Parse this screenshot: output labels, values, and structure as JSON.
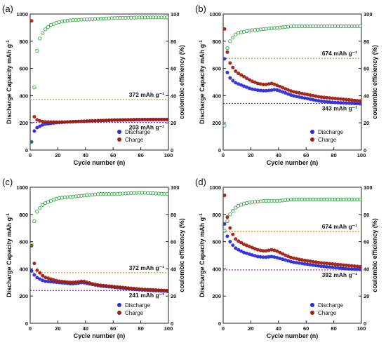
{
  "chart_data": [
    {
      "panel": "(a)",
      "type": "scatter",
      "xlabel": "Cycle number (n)",
      "ylabel": "Discharge Capacity  mAh g",
      "y2label": "coulombic efficiency (%)",
      "xlim": [
        0,
        100
      ],
      "ylim": [
        0,
        1000
      ],
      "y2lim": [
        0,
        100
      ],
      "xticks": [
        "0",
        "20",
        "40",
        "60",
        "80",
        "100"
      ],
      "yticks": [
        "0",
        "200",
        "400",
        "600",
        "800",
        "1000"
      ],
      "y2ticks": [
        "0",
        "20",
        "40",
        "60",
        "80",
        "100"
      ],
      "legend": [
        "Discharge",
        "Charge"
      ],
      "legend_position": "bottom-right",
      "reference_lines": [
        {
          "value": 372,
          "label": "372 mAh g⁻¹",
          "color": "#e08a1c"
        },
        {
          "value": 203,
          "label": "203 mAh g⁻¹",
          "color": "#7a28a8"
        }
      ],
      "series": [
        {
          "name": "Discharge",
          "color": "#2b2bd8",
          "points": [
            [
              1,
              60
            ],
            [
              2,
              105
            ],
            [
              3,
              140
            ],
            [
              5,
              165
            ],
            [
              8,
              180
            ],
            [
              10,
              190
            ],
            [
              20,
              202
            ],
            [
              30,
              208
            ],
            [
              40,
              212
            ],
            [
              50,
              216
            ],
            [
              60,
              220
            ],
            [
              70,
              222
            ],
            [
              80,
              224
            ],
            [
              90,
              225
            ],
            [
              100,
              225
            ]
          ]
        },
        {
          "name": "Charge",
          "color": "#a02010",
          "points": [
            [
              1,
              950
            ],
            [
              2,
              300
            ],
            [
              3,
              245
            ],
            [
              5,
              222
            ],
            [
              8,
              212
            ],
            [
              10,
              208
            ],
            [
              20,
              205
            ],
            [
              30,
              208
            ],
            [
              40,
              212
            ],
            [
              50,
              216
            ],
            [
              60,
              220
            ],
            [
              70,
              222
            ],
            [
              80,
              224
            ],
            [
              90,
              224
            ],
            [
              100,
              224
            ]
          ]
        },
        {
          "name": "Coulombic efficiency",
          "color": "#3aa64a",
          "axis": "right",
          "points": [
            [
              1,
              6
            ],
            [
              2,
              27
            ],
            [
              3,
              46
            ],
            [
              4,
              63
            ],
            [
              5,
              73
            ],
            [
              7,
              82
            ],
            [
              10,
              88
            ],
            [
              15,
              92
            ],
            [
              20,
              94
            ],
            [
              30,
              95.5
            ],
            [
              40,
              96
            ],
            [
              60,
              97
            ],
            [
              80,
              97.5
            ],
            [
              100,
              97.5
            ]
          ]
        }
      ]
    },
    {
      "panel": "(b)",
      "type": "scatter",
      "xlabel": "Cycle number (n)",
      "ylabel": "Discharge Capacity  mAh g",
      "y2label": "coulombic efficiency (%)",
      "xlim": [
        0,
        100
      ],
      "ylim": [
        0,
        1000
      ],
      "y2lim": [
        0,
        100
      ],
      "xticks": [
        "0",
        "20",
        "40",
        "60",
        "80",
        "100"
      ],
      "yticks": [
        "0",
        "200",
        "400",
        "600",
        "800",
        "1000"
      ],
      "y2ticks": [
        "0",
        "20",
        "40",
        "60",
        "80",
        "100"
      ],
      "legend": [
        "Discharge",
        "Charge"
      ],
      "legend_position": "bottom-right",
      "reference_lines": [
        {
          "value": 674,
          "label": "674 mAh g⁻¹",
          "color": "#e08a1c"
        },
        {
          "value": 343,
          "label": "343 mAh g⁻¹",
          "color": "#7a28a8"
        }
      ],
      "series": [
        {
          "name": "Discharge",
          "color": "#2b2bd8",
          "points": [
            [
              1,
              670
            ],
            [
              2,
              600
            ],
            [
              3,
              570
            ],
            [
              5,
              530
            ],
            [
              8,
              500
            ],
            [
              10,
              490
            ],
            [
              15,
              470
            ],
            [
              20,
              450
            ],
            [
              25,
              440
            ],
            [
              30,
              435
            ],
            [
              35,
              440
            ],
            [
              38,
              445
            ],
            [
              45,
              420
            ],
            [
              50,
              400
            ],
            [
              60,
              380
            ],
            [
              70,
              360
            ],
            [
              80,
              350
            ],
            [
              90,
              345
            ],
            [
              100,
              340
            ]
          ]
        },
        {
          "name": "Charge",
          "color": "#a02010",
          "points": [
            [
              1,
              890
            ],
            [
              2,
              780
            ],
            [
              3,
              720
            ],
            [
              5,
              640
            ],
            [
              8,
              590
            ],
            [
              10,
              570
            ],
            [
              15,
              540
            ],
            [
              20,
              510
            ],
            [
              25,
              490
            ],
            [
              30,
              480
            ],
            [
              35,
              490
            ],
            [
              38,
              480
            ],
            [
              45,
              450
            ],
            [
              50,
              430
            ],
            [
              60,
              410
            ],
            [
              70,
              390
            ],
            [
              80,
              380
            ],
            [
              90,
              370
            ],
            [
              100,
              360
            ]
          ]
        },
        {
          "name": "Coulombic efficiency",
          "color": "#3aa64a",
          "axis": "right",
          "points": [
            [
              1,
              18
            ],
            [
              2,
              70
            ],
            [
              3,
              75
            ],
            [
              5,
              80
            ],
            [
              8,
              84
            ],
            [
              10,
              86
            ],
            [
              20,
              88
            ],
            [
              30,
              89
            ],
            [
              40,
              90
            ],
            [
              50,
              91
            ],
            [
              60,
              91
            ],
            [
              70,
              91
            ],
            [
              80,
              91
            ],
            [
              90,
              91
            ],
            [
              100,
              91
            ]
          ]
        }
      ]
    },
    {
      "panel": "(c)",
      "type": "scatter",
      "xlabel": "Cycle number (n)",
      "ylabel": "Discharge Capacity  mAh g",
      "y2label": "coulombic efficiency (%)",
      "xlim": [
        0,
        100
      ],
      "ylim": [
        0,
        1000
      ],
      "y2lim": [
        0,
        100
      ],
      "xticks": [
        "0",
        "20",
        "40",
        "60",
        "80",
        "100"
      ],
      "yticks": [
        "0",
        "200",
        "400",
        "600",
        "800",
        "1000"
      ],
      "y2ticks": [
        "0",
        "20",
        "40",
        "60",
        "80",
        "100"
      ],
      "legend": [
        "Discharge",
        "Charge"
      ],
      "legend_position": "bottom-right",
      "reference_lines": [
        {
          "value": 372,
          "label": "372 mAh g⁻¹",
          "color": "#e08a1c"
        },
        {
          "value": 241,
          "label": "241 mAh g⁻¹",
          "color": "#7a28a8"
        }
      ],
      "series": [
        {
          "name": "Discharge",
          "color": "#2b2bd8",
          "points": [
            [
              1,
              385
            ],
            [
              2,
              370
            ],
            [
              3,
              355
            ],
            [
              5,
              335
            ],
            [
              8,
              320
            ],
            [
              10,
              310
            ],
            [
              20,
              300
            ],
            [
              30,
              290
            ],
            [
              35,
              295
            ],
            [
              38,
              300
            ],
            [
              45,
              285
            ],
            [
              50,
              275
            ],
            [
              60,
              265
            ],
            [
              70,
              255
            ],
            [
              80,
              245
            ],
            [
              90,
              240
            ],
            [
              100,
              235
            ]
          ]
        },
        {
          "name": "Charge",
          "color": "#a02010",
          "points": [
            [
              1,
              570
            ],
            [
              2,
              480
            ],
            [
              3,
              440
            ],
            [
              5,
              390
            ],
            [
              8,
              360
            ],
            [
              10,
              340
            ],
            [
              20,
              310
            ],
            [
              30,
              300
            ],
            [
              35,
              305
            ],
            [
              38,
              310
            ],
            [
              45,
              290
            ],
            [
              50,
              280
            ],
            [
              60,
              270
            ],
            [
              70,
              260
            ],
            [
              80,
              250
            ],
            [
              90,
              245
            ],
            [
              100,
              240
            ]
          ]
        },
        {
          "name": "Coulombic efficiency",
          "color": "#3aa64a",
          "axis": "right",
          "points": [
            [
              1,
              58
            ],
            [
              2,
              67
            ],
            [
              3,
              75
            ],
            [
              5,
              82
            ],
            [
              8,
              86
            ],
            [
              10,
              88
            ],
            [
              15,
              90
            ],
            [
              20,
              92
            ],
            [
              30,
              93
            ],
            [
              40,
              94
            ],
            [
              50,
              95
            ],
            [
              60,
              95
            ],
            [
              80,
              96
            ],
            [
              100,
              95
            ]
          ]
        }
      ]
    },
    {
      "panel": "(d)",
      "type": "scatter",
      "xlabel": "Cycle number (n)",
      "ylabel": "Discharge Capacity  mAh g",
      "y2label": "coulombic efficiency (%)",
      "xlim": [
        0,
        100
      ],
      "ylim": [
        0,
        1000
      ],
      "y2lim": [
        0,
        100
      ],
      "xticks": [
        "0",
        "20",
        "40",
        "60",
        "80",
        "100"
      ],
      "yticks": [
        "0",
        "200",
        "400",
        "600",
        "800",
        "1000"
      ],
      "y2ticks": [
        "0",
        "20",
        "40",
        "60",
        "80",
        "100"
      ],
      "legend": [
        "Discharge",
        "Charge"
      ],
      "legend_position": "bottom-right",
      "reference_lines": [
        {
          "value": 674,
          "label": "674 mAh g⁻¹",
          "color": "#e08a1c"
        },
        {
          "value": 392,
          "label": "392 mAh g⁻¹",
          "color": "#7a28a8"
        }
      ],
      "series": [
        {
          "name": "Discharge",
          "color": "#2b2bd8",
          "points": [
            [
              1,
              730
            ],
            [
              2,
              680
            ],
            [
              3,
              640
            ],
            [
              5,
              600
            ],
            [
              8,
              560
            ],
            [
              10,
              545
            ],
            [
              15,
              520
            ],
            [
              20,
              505
            ],
            [
              25,
              490
            ],
            [
              30,
              485
            ],
            [
              35,
              490
            ],
            [
              38,
              485
            ],
            [
              45,
              465
            ],
            [
              50,
              450
            ],
            [
              60,
              435
            ],
            [
              70,
              420
            ],
            [
              80,
              410
            ],
            [
              90,
              400
            ],
            [
              100,
              395
            ]
          ]
        },
        {
          "name": "Charge",
          "color": "#a02010",
          "points": [
            [
              1,
              940
            ],
            [
              2,
              850
            ],
            [
              3,
              780
            ],
            [
              5,
              700
            ],
            [
              8,
              630
            ],
            [
              10,
              610
            ],
            [
              15,
              580
            ],
            [
              20,
              560
            ],
            [
              25,
              540
            ],
            [
              30,
              530
            ],
            [
              35,
              540
            ],
            [
              38,
              535
            ],
            [
              45,
              500
            ],
            [
              50,
              480
            ],
            [
              60,
              460
            ],
            [
              70,
              445
            ],
            [
              80,
              435
            ],
            [
              90,
              425
            ],
            [
              100,
              415
            ]
          ]
        },
        {
          "name": "Coulombic efficiency",
          "color": "#3aa64a",
          "axis": "right",
          "points": [
            [
              1,
              68
            ],
            [
              2,
              72
            ],
            [
              3,
              75
            ],
            [
              5,
              80
            ],
            [
              8,
              84
            ],
            [
              10,
              86
            ],
            [
              15,
              88
            ],
            [
              20,
              89
            ],
            [
              30,
              90
            ],
            [
              40,
              90
            ],
            [
              50,
              91
            ],
            [
              60,
              91
            ],
            [
              70,
              91
            ],
            [
              80,
              91
            ],
            [
              90,
              91
            ],
            [
              100,
              91
            ]
          ]
        }
      ]
    }
  ]
}
